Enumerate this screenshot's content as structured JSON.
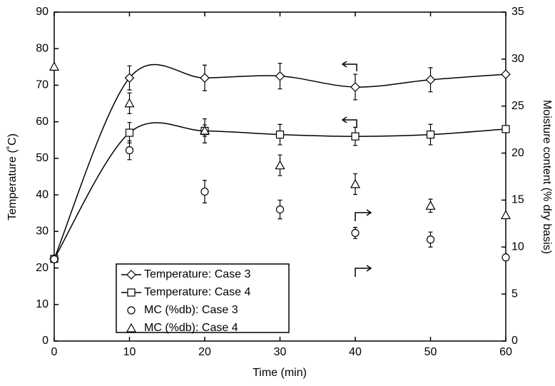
{
  "chart_data": {
    "type": "line",
    "xlabel": "Time (min)",
    "ylabel": "Temperature (˚C)",
    "y2label": "Moisture content (% dry basis)",
    "x": [
      0,
      10,
      20,
      30,
      40,
      50,
      60
    ],
    "xlim": [
      0,
      60
    ],
    "xticks": [
      0,
      10,
      20,
      30,
      40,
      50,
      60
    ],
    "ylim": [
      0,
      90
    ],
    "yticks": [
      0,
      10,
      20,
      30,
      40,
      50,
      60,
      70,
      80,
      90
    ],
    "y2lim": [
      0,
      35
    ],
    "y2ticks": [
      0,
      5,
      10,
      15,
      20,
      25,
      30,
      35
    ],
    "legend": "lower left",
    "series": [
      {
        "name": "Temperature: Case 3",
        "color": "#000000",
        "marker": "diamond",
        "smooth": true,
        "values": [
          22.5,
          72,
          72,
          72.5,
          69.5,
          71.5,
          73
        ],
        "errors": [
          0,
          3.3,
          3.5,
          3.5,
          3.5,
          3.3,
          0
        ]
      },
      {
        "name": "Temperature: Case 4",
        "color": "#000000",
        "marker": "square",
        "smooth": true,
        "values": [
          22.5,
          57,
          57.5,
          56.5,
          56,
          56.5,
          58
        ],
        "errors": [
          0,
          2.8,
          3.3,
          2.8,
          2.5,
          2.8,
          0
        ]
      },
      {
        "name": "MC (%db): Case 3",
        "color": "#000000",
        "marker": "circle",
        "axis": "y2",
        "values": [
          8.7,
          20.3,
          15.9,
          14.0,
          11.5,
          10.8,
          8.9
        ],
        "errors": [
          0,
          1.0,
          1.2,
          1.0,
          0.6,
          0.8,
          0
        ]
      },
      {
        "name": "MC (%db): Case 4",
        "color": "#000000",
        "marker": "triangle",
        "axis": "y2",
        "values": [
          29.2,
          25.3,
          22.4,
          18.7,
          16.7,
          14.4,
          13.4
        ],
        "errors": [
          0,
          1.1,
          0.6,
          1.1,
          1.1,
          0.7,
          0
        ]
      }
    ]
  }
}
